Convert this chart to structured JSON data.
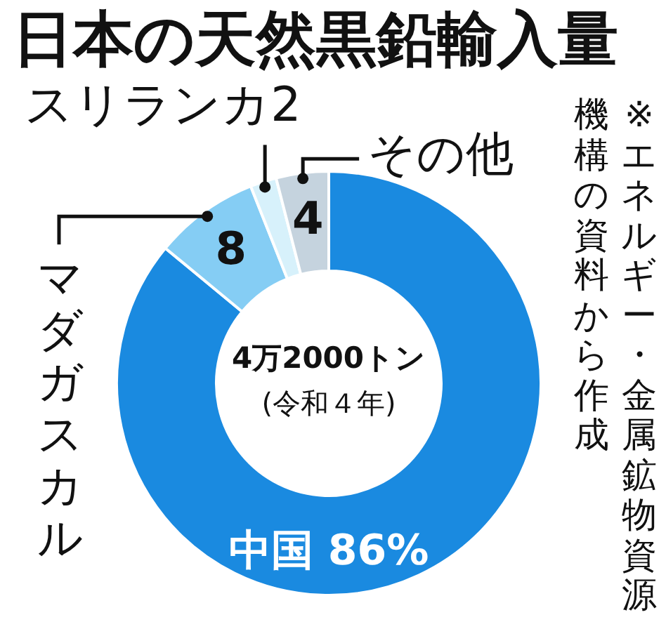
{
  "chart_data": {
    "type": "donut",
    "title": "日本の天然黒鉛輸入量",
    "categories": [
      "中国",
      "マダガスカル",
      "スリランカ",
      "その他"
    ],
    "values": [
      86,
      8,
      2,
      4
    ],
    "value_labels": [
      "86%",
      "8",
      "2",
      "4"
    ],
    "colors": [
      "#1a8ae0",
      "#85cdf4",
      "#d7f1fb",
      "#c5d3de"
    ],
    "annotations": [
      "4万2000トン",
      "(令和４年)",
      "※エネルギー・金属鉱物資源",
      "機構の資料から作成"
    ]
  }
}
